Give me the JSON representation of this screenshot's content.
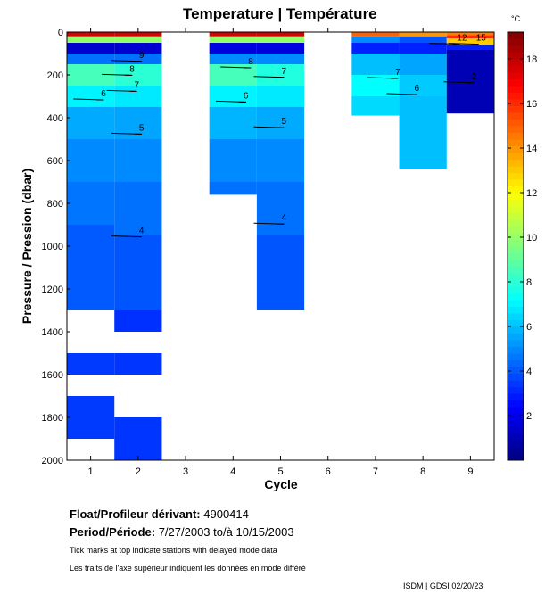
{
  "chart_data": {
    "type": "heatmap",
    "title": "Temperature | Température",
    "xlabel": "Cycle",
    "ylabel": "Pressure / Pression (dbar)",
    "xlim": [
      0.5,
      9.5
    ],
    "ylim": [
      0,
      2000
    ],
    "y_inverted": true,
    "x_ticks": [
      1,
      2,
      3,
      4,
      5,
      6,
      7,
      8,
      9
    ],
    "y_ticks": [
      0,
      200,
      400,
      600,
      800,
      1000,
      1200,
      1400,
      1600,
      1800,
      2000
    ],
    "colorbar": {
      "label": "°C",
      "range": [
        0,
        19.2
      ],
      "ticks": [
        2,
        4,
        6,
        8,
        10,
        12,
        14,
        16,
        18
      ],
      "colormap": "jet"
    },
    "profiles": [
      {
        "cycle": 1,
        "max_pressure": 1900,
        "gaps": [
          [
            1300,
            1500
          ],
          [
            1600,
            1700
          ]
        ],
        "layers": [
          [
            0,
            20,
            17.5
          ],
          [
            20,
            50,
            10
          ],
          [
            50,
            100,
            1.5
          ],
          [
            100,
            150,
            4.5
          ],
          [
            150,
            250,
            8.5
          ],
          [
            250,
            350,
            7
          ],
          [
            350,
            500,
            5.6
          ],
          [
            500,
            700,
            5.0
          ],
          [
            700,
            900,
            4.6
          ],
          [
            900,
            1300,
            4.1
          ],
          [
            1300,
            1900,
            3.5
          ]
        ]
      },
      {
        "cycle": 2,
        "max_pressure": 2000,
        "gaps": [
          [
            1400,
            1500
          ],
          [
            1600,
            1800
          ]
        ],
        "layers": [
          [
            0,
            20,
            17.5
          ],
          [
            20,
            50,
            10
          ],
          [
            50,
            100,
            1.5
          ],
          [
            100,
            150,
            4.5
          ],
          [
            150,
            250,
            8.0
          ],
          [
            250,
            350,
            6.8
          ],
          [
            350,
            500,
            5.5
          ],
          [
            500,
            700,
            5.0
          ],
          [
            700,
            950,
            4.5
          ],
          [
            950,
            1300,
            4.0
          ],
          [
            1300,
            1400,
            3.3
          ],
          [
            1400,
            2000,
            3.4
          ]
        ]
      },
      {
        "cycle": 4,
        "max_pressure": 760,
        "gaps": [],
        "layers": [
          [
            0,
            20,
            17.5
          ],
          [
            20,
            50,
            10
          ],
          [
            50,
            100,
            1.8
          ],
          [
            100,
            150,
            5.0
          ],
          [
            150,
            250,
            8.5
          ],
          [
            250,
            350,
            7.0
          ],
          [
            350,
            500,
            5.8
          ],
          [
            500,
            700,
            5.0
          ],
          [
            700,
            760,
            4.5
          ]
        ]
      },
      {
        "cycle": 5,
        "max_pressure": 1300,
        "gaps": [],
        "layers": [
          [
            0,
            20,
            17.5
          ],
          [
            20,
            50,
            10
          ],
          [
            50,
            100,
            1.8
          ],
          [
            100,
            150,
            5.0
          ],
          [
            150,
            250,
            7.8
          ],
          [
            250,
            350,
            6.8
          ],
          [
            350,
            500,
            5.6
          ],
          [
            500,
            700,
            5.0
          ],
          [
            700,
            950,
            4.5
          ],
          [
            950,
            1300,
            4.0
          ]
        ]
      },
      {
        "cycle": 7,
        "max_pressure": 390,
        "gaps": [],
        "layers": [
          [
            0,
            20,
            15.0
          ],
          [
            20,
            50,
            5.0
          ],
          [
            50,
            100,
            3.0
          ],
          [
            100,
            200,
            6.0
          ],
          [
            200,
            300,
            7.2
          ],
          [
            300,
            390,
            6.5
          ]
        ]
      },
      {
        "cycle": 8,
        "max_pressure": 640,
        "gaps": [],
        "layers": [
          [
            0,
            20,
            14.0
          ],
          [
            20,
            50,
            4.0
          ],
          [
            50,
            100,
            3.0
          ],
          [
            100,
            200,
            5.5
          ],
          [
            200,
            300,
            6.2
          ],
          [
            300,
            640,
            6.0
          ]
        ]
      },
      {
        "cycle": 9,
        "max_pressure": 380,
        "gaps": [],
        "layers": [
          [
            0,
            15,
            14.5
          ],
          [
            15,
            30,
            16.0
          ],
          [
            30,
            60,
            13.0
          ],
          [
            60,
            80,
            3.0
          ],
          [
            80,
            380,
            1.0
          ]
        ]
      }
    ],
    "contour_labels": [
      {
        "value": "4",
        "cycle": 2.0,
        "pressure": 940
      },
      {
        "value": "4",
        "cycle": 5.0,
        "pressure": 880
      },
      {
        "value": "5",
        "cycle": 2.0,
        "pressure": 460
      },
      {
        "value": "5",
        "cycle": 5.0,
        "pressure": 430
      },
      {
        "value": "6",
        "cycle": 1.2,
        "pressure": 300
      },
      {
        "value": "6",
        "cycle": 4.2,
        "pressure": 310
      },
      {
        "value": "6",
        "cycle": 7.8,
        "pressure": 275
      },
      {
        "value": "7",
        "cycle": 1.9,
        "pressure": 260
      },
      {
        "value": "7",
        "cycle": 5.0,
        "pressure": 195
      },
      {
        "value": "7",
        "cycle": 7.4,
        "pressure": 200
      },
      {
        "value": "8",
        "cycle": 1.8,
        "pressure": 185
      },
      {
        "value": "8",
        "cycle": 4.3,
        "pressure": 150
      },
      {
        "value": "9",
        "cycle": 2.0,
        "pressure": 120
      },
      {
        "value": "12",
        "cycle": 8.7,
        "pressure": 40
      },
      {
        "value": "15",
        "cycle": 9.1,
        "pressure": 40
      },
      {
        "value": "2",
        "cycle": 9.0,
        "pressure": 220
      }
    ],
    "delayed_mode_ticks": [
      1,
      2,
      3,
      4,
      5,
      6,
      7,
      8
    ]
  },
  "info": {
    "float_label": "Float/Profileur dérivant:",
    "float_id": "4900414",
    "period_label": "Period/Période:",
    "period_start": "7/27/2003",
    "period_sep": "to/à",
    "period_end": "10/15/2003",
    "note_en": "Tick marks at top indicate stations with delayed mode data",
    "note_fr": "Les traits de l'axe supérieur indiquent les données en mode différé"
  },
  "footer": {
    "credit": "ISDM | GDSI  02/20/23"
  }
}
